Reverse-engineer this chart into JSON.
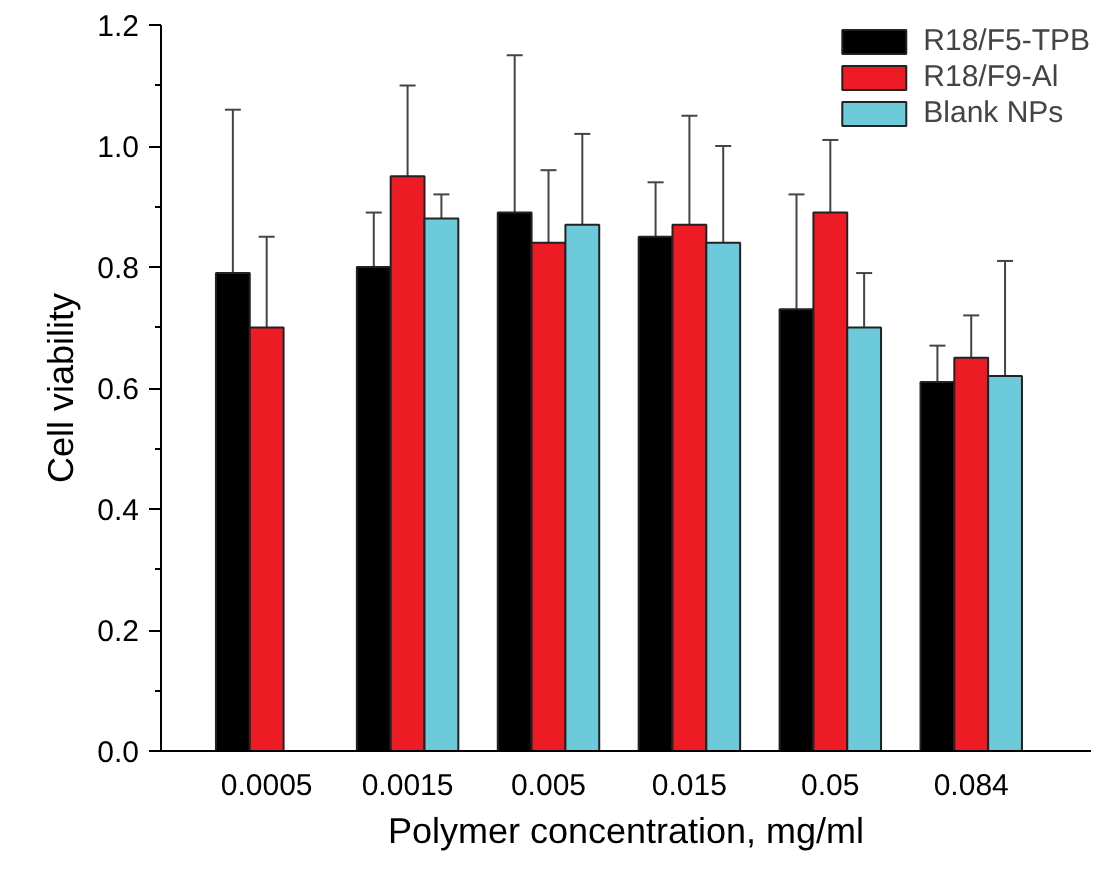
{
  "chart_data": {
    "type": "bar",
    "xlabel": "Polymer concentration, mg/ml",
    "ylabel": "Cell viability",
    "categories": [
      "0.0005",
      "0.0015",
      "0.005",
      "0.015",
      "0.05",
      "0.084"
    ],
    "series": [
      {
        "name": "R18/F5-TPB",
        "color": "#000000",
        "values": [
          0.79,
          0.8,
          0.89,
          0.85,
          0.73,
          0.61
        ],
        "errors": [
          0.27,
          0.09,
          0.26,
          0.09,
          0.19,
          0.06
        ]
      },
      {
        "name": "R18/F9-Al",
        "color": "#ed1c24",
        "values": [
          0.7,
          0.95,
          0.84,
          0.87,
          0.89,
          0.65
        ],
        "errors": [
          0.15,
          0.15,
          0.12,
          0.18,
          0.12,
          0.07
        ]
      },
      {
        "name": "Blank NPs",
        "color": "#6ccadb",
        "values": [
          null,
          0.88,
          0.87,
          0.84,
          0.7,
          0.62
        ],
        "errors": [
          null,
          0.04,
          0.15,
          0.16,
          0.09,
          0.19
        ]
      }
    ],
    "ylim": [
      0,
      1.2
    ],
    "yticks": [
      {
        "value": 0,
        "label": "0.0"
      },
      {
        "value": 0.2,
        "label": "0.2"
      },
      {
        "value": 0.4,
        "label": "0.4"
      },
      {
        "value": 0.6,
        "label": "0.6"
      },
      {
        "value": 0.8,
        "label": "0.8"
      },
      {
        "value": 1.0,
        "label": "1.0"
      },
      {
        "value": 1.2,
        "label": "1.2"
      }
    ],
    "grid": false,
    "legend": "top right"
  }
}
